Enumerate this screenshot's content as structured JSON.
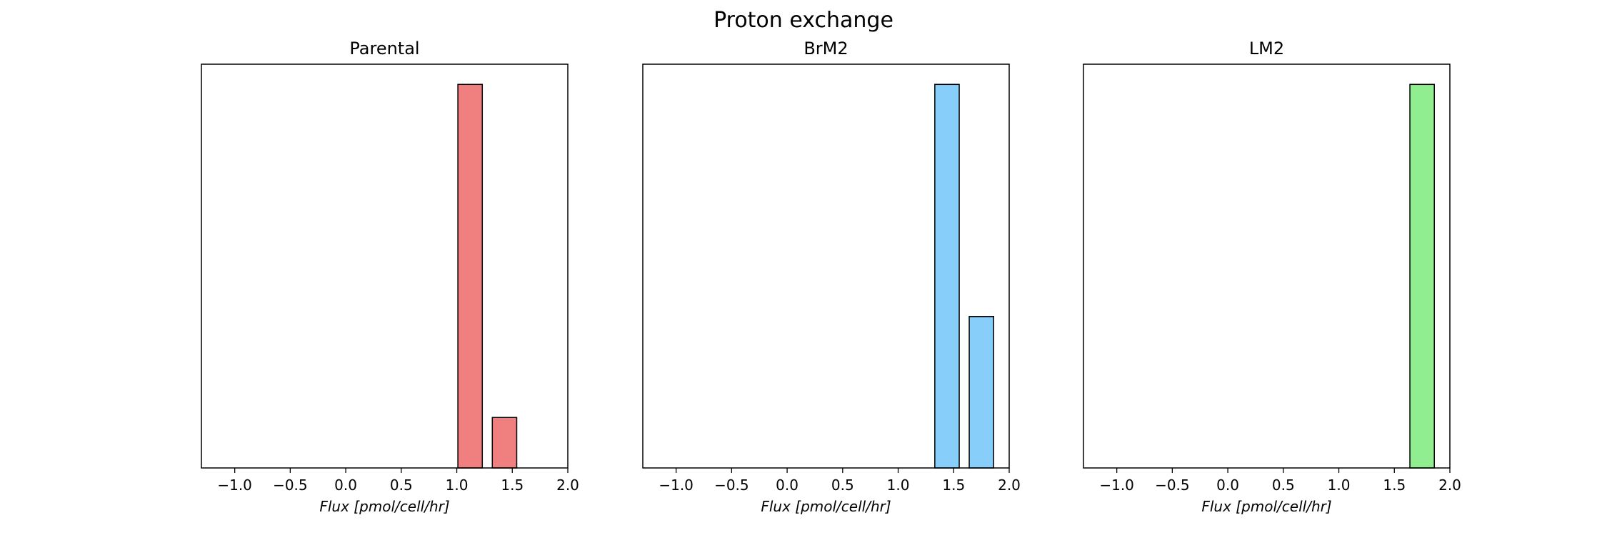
{
  "figure": {
    "title": "Proton exchange"
  },
  "chart_data": [
    {
      "type": "bar",
      "title": "Parental",
      "xlabel": "Flux [pmol/cell/hr]",
      "ylabel": "",
      "xlim": [
        -1.3,
        2.0
      ],
      "ylim": [
        0,
        1.0
      ],
      "yticks_visible": false,
      "grid": false,
      "legend": "none",
      "xticks": [
        "−1.0",
        "−0.5",
        "0.0",
        "0.5",
        "1.0",
        "1.5",
        "2.0"
      ],
      "xtick_values": [
        -1.0,
        -0.5,
        0.0,
        0.5,
        1.0,
        1.5,
        2.0
      ],
      "bars": [
        {
          "x0": 1.01,
          "x1": 1.23,
          "value": 0.95
        },
        {
          "x0": 1.32,
          "x1": 1.54,
          "value": 0.125
        }
      ],
      "bar_color": "#F08080"
    },
    {
      "type": "bar",
      "title": "BrM2",
      "xlabel": "Flux [pmol/cell/hr]",
      "ylabel": "",
      "xlim": [
        -1.3,
        2.0
      ],
      "ylim": [
        0,
        1.0
      ],
      "yticks_visible": false,
      "grid": false,
      "legend": "none",
      "xticks": [
        "−1.0",
        "−0.5",
        "0.0",
        "0.5",
        "1.0",
        "1.5",
        "2.0"
      ],
      "xtick_values": [
        -1.0,
        -0.5,
        0.0,
        0.5,
        1.0,
        1.5,
        2.0
      ],
      "bars": [
        {
          "x0": 1.33,
          "x1": 1.55,
          "value": 0.95
        },
        {
          "x0": 1.64,
          "x1": 1.86,
          "value": 0.375
        }
      ],
      "bar_color": "#87CEFA"
    },
    {
      "type": "bar",
      "title": "LM2",
      "xlabel": "Flux [pmol/cell/hr]",
      "ylabel": "",
      "xlim": [
        -1.3,
        2.0
      ],
      "ylim": [
        0,
        1.0
      ],
      "yticks_visible": false,
      "grid": false,
      "legend": "none",
      "xticks": [
        "−1.0",
        "−0.5",
        "0.0",
        "0.5",
        "1.0",
        "1.5",
        "2.0"
      ],
      "xtick_values": [
        -1.0,
        -0.5,
        0.0,
        0.5,
        1.0,
        1.5,
        2.0
      ],
      "bars": [
        {
          "x0": 1.64,
          "x1": 1.86,
          "value": 0.95
        }
      ],
      "bar_color": "#90EE90"
    }
  ]
}
